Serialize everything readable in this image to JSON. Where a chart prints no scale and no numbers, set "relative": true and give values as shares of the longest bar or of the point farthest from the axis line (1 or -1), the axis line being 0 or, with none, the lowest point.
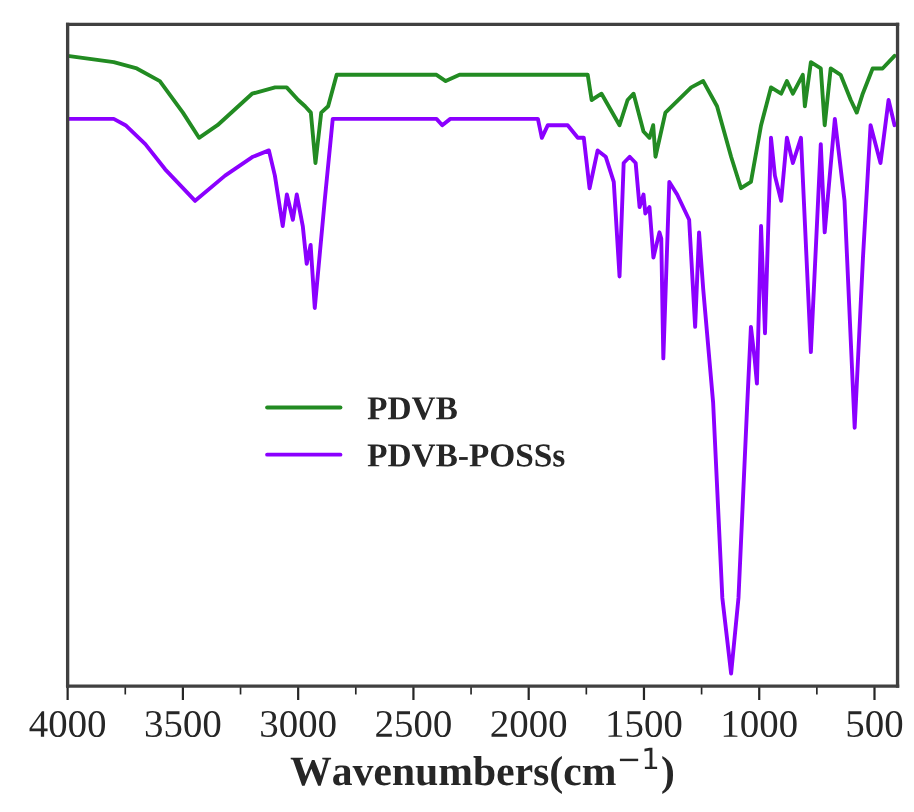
{
  "chart_data": {
    "type": "line",
    "xlabel": "Wavenumbers(cm$^{−1}$)",
    "relative": true,
    "legend": "center",
    "grid": false,
    "xlim": [
      4000,
      400
    ],
    "xticks": [
      4000,
      {
        "value": 3750,
        "label": null
      },
      3500,
      {
        "value": 3250,
        "label": null
      },
      3000,
      {
        "value": 2750,
        "label": null
      },
      2500,
      {
        "value": 2250,
        "label": null
      },
      2000,
      {
        "value": 1750,
        "label": null
      },
      1500,
      {
        "value": 1250,
        "label": null
      },
      1000,
      {
        "value": 750,
        "label": null
      },
      500
    ],
    "series": [
      {
        "name": "PDVB",
        "color": "#228b22",
        "x": [
          4000,
          3800,
          3700,
          3600,
          3500,
          3430,
          3350,
          3200,
          3100,
          3050,
          3000,
          2970,
          2945,
          2925,
          2900,
          2870,
          2833,
          2400,
          2360,
          2300,
          1744,
          1727,
          1684,
          1606,
          1571,
          1545,
          1502,
          1476,
          1460,
          1450,
          1407,
          1295,
          1243,
          1183,
          1122,
          1079,
          1036,
          992,
          949,
          905,
          880,
          854,
          811,
          802,
          776,
          733,
          716,
          690,
          647,
          603,
          577,
          551,
          508,
          465,
          413
        ],
        "values": [
          1.0,
          0.99,
          0.98,
          0.96,
          0.91,
          0.87,
          0.89,
          0.94,
          0.95,
          0.95,
          0.93,
          0.92,
          0.91,
          0.83,
          0.91,
          0.92,
          0.97,
          0.97,
          0.96,
          0.97,
          0.97,
          0.93,
          0.94,
          0.89,
          0.93,
          0.94,
          0.88,
          0.87,
          0.89,
          0.84,
          0.91,
          0.95,
          0.96,
          0.92,
          0.84,
          0.79,
          0.8,
          0.89,
          0.95,
          0.94,
          0.96,
          0.94,
          0.97,
          0.92,
          0.99,
          0.98,
          0.89,
          0.98,
          0.97,
          0.93,
          0.91,
          0.94,
          0.98,
          0.98,
          1.0
        ]
      },
      {
        "name": "PDVB-POSSs",
        "color": "#8b00ff",
        "x": [
          4000,
          3800,
          3749,
          3663,
          3577,
          3447,
          3317,
          3196,
          3127,
          3101,
          3067,
          3049,
          3023,
          3006,
          2980,
          2963,
          2946,
          2928,
          2885,
          2850,
          2824,
          2400,
          2375,
          2340,
          1960,
          1943,
          1917,
          1874,
          1831,
          1787,
          1761,
          1736,
          1701,
          1666,
          1631,
          1606,
          1588,
          1562,
          1536,
          1519,
          1502,
          1494,
          1476,
          1459,
          1433,
          1425,
          1416,
          1390,
          1356,
          1304,
          1278,
          1261,
          1243,
          1200,
          1160,
          1122,
          1090,
          1053,
          1036,
          1020,
          1010,
          992,
          975,
          949,
          932,
          905,
          880,
          854,
          819,
          776,
          733,
          716,
          672,
          630,
          586,
          550,
          517,
          474,
          439,
          413
        ],
        "values": [
          0.9,
          0.9,
          0.89,
          0.86,
          0.82,
          0.77,
          0.81,
          0.84,
          0.85,
          0.81,
          0.73,
          0.78,
          0.74,
          0.78,
          0.73,
          0.67,
          0.7,
          0.6,
          0.77,
          0.9,
          0.9,
          0.9,
          0.89,
          0.9,
          0.9,
          0.87,
          0.89,
          0.89,
          0.89,
          0.87,
          0.87,
          0.79,
          0.85,
          0.84,
          0.8,
          0.65,
          0.83,
          0.84,
          0.83,
          0.76,
          0.78,
          0.75,
          0.76,
          0.68,
          0.72,
          0.71,
          0.52,
          0.8,
          0.78,
          0.74,
          0.57,
          0.72,
          0.63,
          0.45,
          0.14,
          0.02,
          0.14,
          0.44,
          0.57,
          0.52,
          0.48,
          0.73,
          0.56,
          0.87,
          0.81,
          0.77,
          0.87,
          0.83,
          0.87,
          0.53,
          0.86,
          0.72,
          0.9,
          0.77,
          0.41,
          0.68,
          0.89,
          0.83,
          0.93,
          0.89
        ]
      }
    ]
  }
}
